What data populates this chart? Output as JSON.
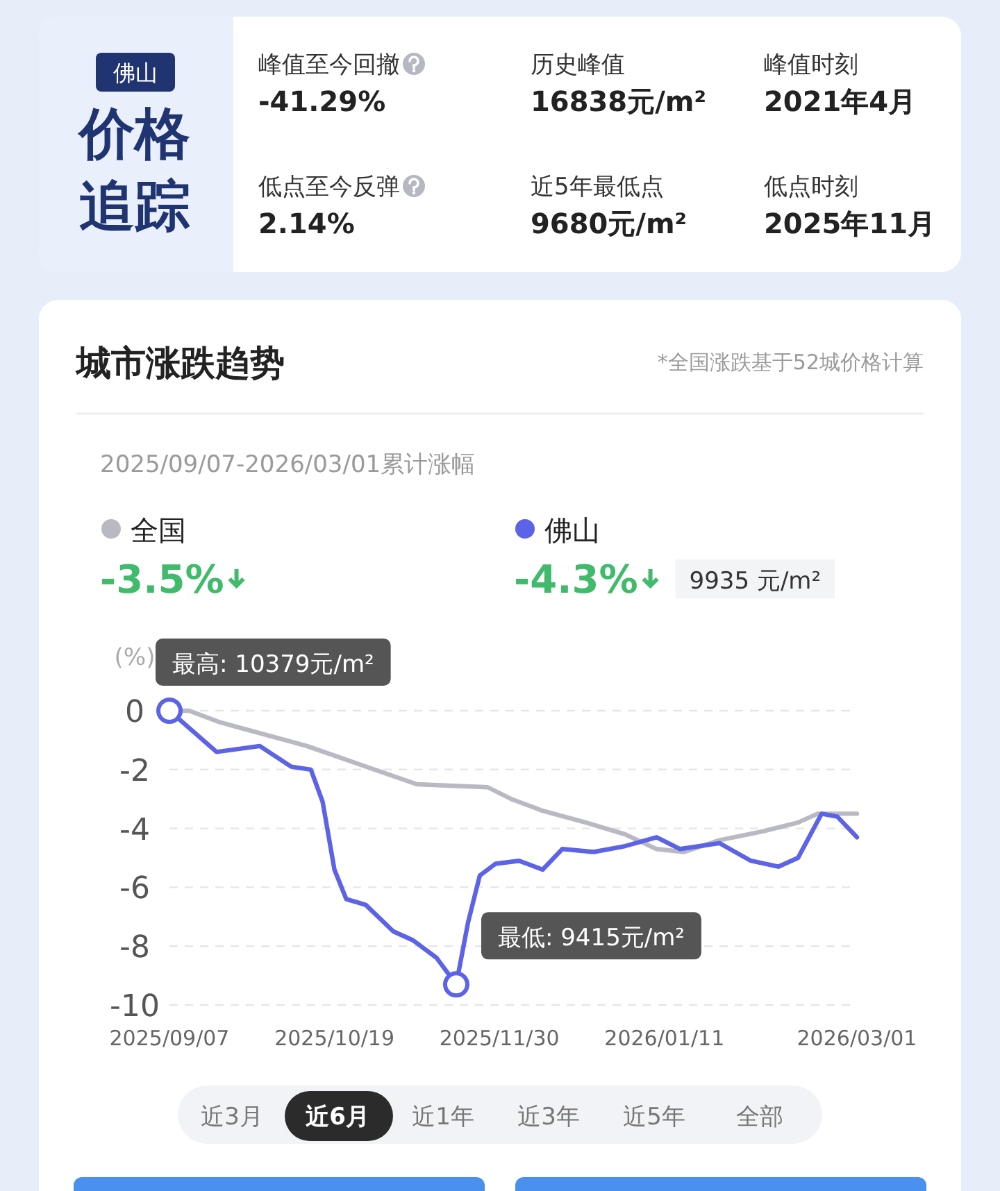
{
  "chart_data": [
    {
      "type": "other",
      "title": "价格追踪",
      "subtitle": "佛山",
      "annotations": [
        "峰值至今回撤",
        "-41.29%",
        "历史峰值",
        "16838元/m²",
        "峰值时刻",
        "2021年4月",
        "低点至今反弹",
        "2.14%",
        "近5年最低点",
        "9680元/m²",
        "低点时刻",
        "2025年11月"
      ]
    },
    {
      "type": "line",
      "title": "城市涨跌趋势",
      "subtitle": "2025/09/07-2026/03/01累计涨幅",
      "ylabel": "(%)",
      "legend": "top left",
      "grid": "y",
      "marker": "none",
      "line_style": "solid",
      "xlim": [
        "2025-09-07",
        "2026-03-01"
      ],
      "ylim": [
        -10,
        0
      ],
      "xticks": [
        {
          "value": "2025-09-07",
          "label": "2025/09/07"
        },
        {
          "value": "2025-10-19",
          "label": "2025/10/19"
        },
        {
          "value": "2025-11-30",
          "label": "2025/11/30"
        },
        {
          "value": "2026-01-11",
          "label": "2026/01/11"
        },
        {
          "value": "2026-03-01",
          "label": "2026/03/01"
        }
      ],
      "yticks": [
        0,
        -2,
        -4,
        -6,
        -8,
        -10
      ],
      "series": [
        {
          "name": "全国",
          "color": "#b9b9c3",
          "x": [
            "2025-09-07",
            "2025-09-12",
            "2025-09-20",
            "2025-10-01",
            "2025-10-12",
            "2025-10-27",
            "2025-11-09",
            "2025-11-27",
            "2025-12-03",
            "2025-12-11",
            "2025-12-22",
            "2026-01-01",
            "2026-01-09",
            "2026-01-16",
            "2026-01-25",
            "2026-02-05",
            "2026-02-14",
            "2026-02-19",
            "2026-03-01"
          ],
          "values": [
            0,
            0,
            -0.4,
            -0.8,
            -1.2,
            -1.9,
            -2.5,
            -2.6,
            -3.0,
            -3.4,
            -3.8,
            -4.2,
            -4.7,
            -4.8,
            -4.4,
            -4.1,
            -3.8,
            -3.5,
            -3.5
          ]
        },
        {
          "name": "佛山",
          "color": "#5c63e6",
          "x": [
            "2025-09-07",
            "2025-09-19",
            "2025-09-30",
            "2025-10-08",
            "2025-10-13",
            "2025-10-16",
            "2025-10-19",
            "2025-10-22",
            "2025-10-27",
            "2025-11-03",
            "2025-11-08",
            "2025-11-14",
            "2025-11-19",
            "2025-11-22",
            "2025-11-25",
            "2025-11-29",
            "2025-12-05",
            "2025-12-11",
            "2025-12-16",
            "2025-12-24",
            "2026-01-01",
            "2026-01-09",
            "2026-01-15",
            "2026-01-25",
            "2026-02-02",
            "2026-02-09",
            "2026-02-14",
            "2026-02-20",
            "2026-02-24",
            "2026-03-01"
          ],
          "values": [
            0,
            -1.4,
            -1.2,
            -1.9,
            -2.0,
            -3.1,
            -5.4,
            -6.4,
            -6.6,
            -7.5,
            -7.8,
            -8.4,
            -9.3,
            -7.2,
            -5.6,
            -5.2,
            -5.1,
            -5.4,
            -4.7,
            -4.8,
            -4.6,
            -4.3,
            -4.7,
            -4.5,
            -5.1,
            -5.3,
            -5.0,
            -3.5,
            -3.6,
            -4.3
          ]
        }
      ],
      "annotations": [
        "*全国涨跌基于52城价格计算",
        "-3.5%",
        "-4.3%",
        "9935 元/m²",
        {
          "text": "最高: 10379元/m²",
          "x": "2025-09-07",
          "y": 0
        },
        {
          "text": "最低: 9415元/m²",
          "x": "2025-11-19",
          "y": -9.3
        },
        "近3月",
        "近6月",
        "近1年",
        "近3年",
        "近5年",
        "全部"
      ]
    }
  ]
}
